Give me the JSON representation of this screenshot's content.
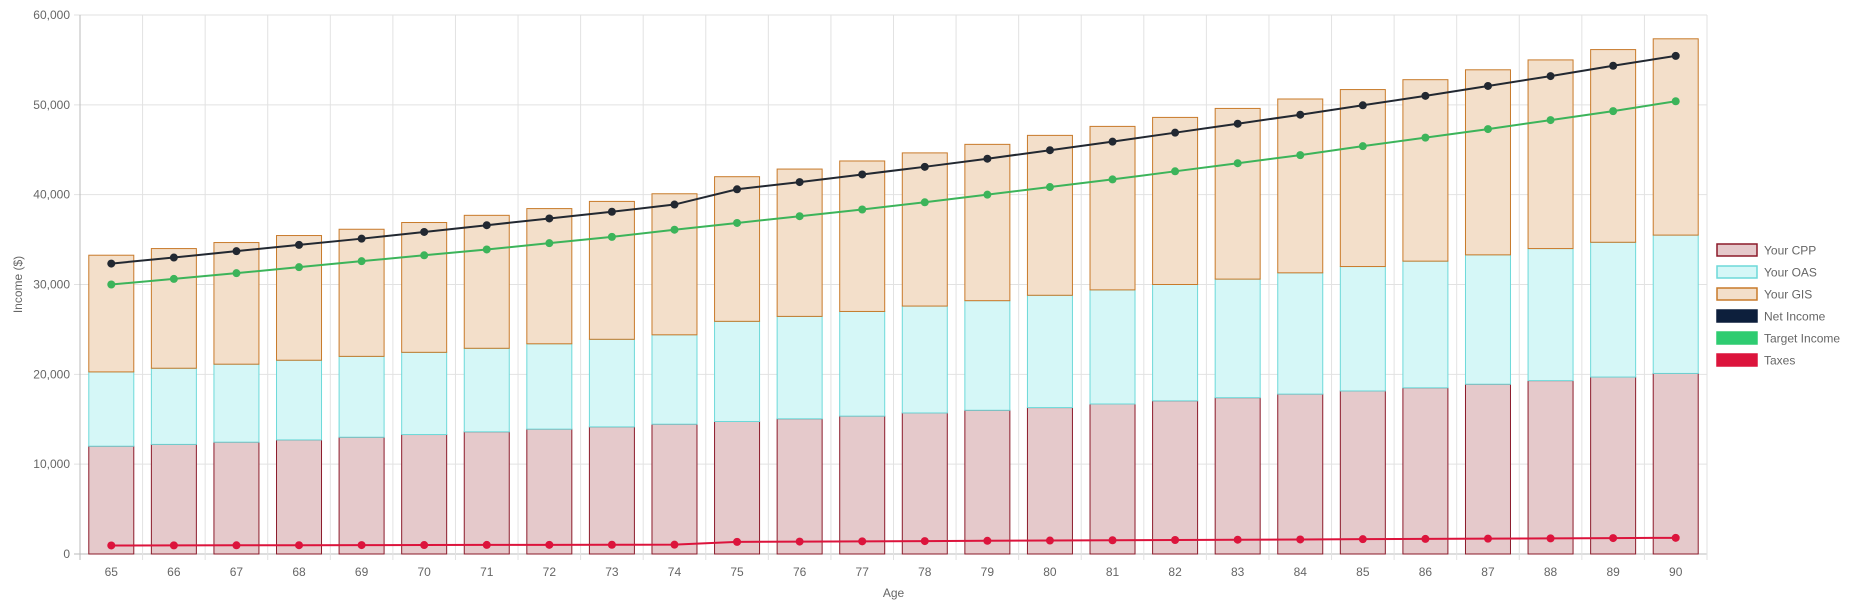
{
  "chart_data": {
    "type": "bar",
    "stacked": true,
    "title": "",
    "xlabel": "Age",
    "ylabel": "Income ($)",
    "ylim": [
      0,
      60000
    ],
    "yticks": [
      "0",
      "10,000",
      "20,000",
      "30,000",
      "40,000",
      "50,000",
      "60,000"
    ],
    "ytick_values": [
      0,
      10000,
      20000,
      30000,
      40000,
      50000,
      60000
    ],
    "grid": true,
    "legend_position": "right",
    "categories": [
      "65",
      "66",
      "67",
      "68",
      "69",
      "70",
      "71",
      "72",
      "73",
      "74",
      "75",
      "76",
      "77",
      "78",
      "79",
      "80",
      "81",
      "82",
      "83",
      "84",
      "85",
      "86",
      "87",
      "88",
      "89",
      "90"
    ],
    "bar_series": [
      {
        "name": "Your CPP",
        "fill": "#e5c9cb",
        "stroke": "#8b1a2a",
        "values": [
          12000,
          12200,
          12450,
          12700,
          13000,
          13300,
          13600,
          13900,
          14150,
          14450,
          14750,
          15050,
          15350,
          15700,
          16000,
          16300,
          16700,
          17050,
          17400,
          17800,
          18150,
          18500,
          18900,
          19300,
          19700,
          20100
        ]
      },
      {
        "name": "Your OAS",
        "fill": "#d5f7f7",
        "stroke": "#6dd9d9",
        "values": [
          8270,
          8480,
          8680,
          8870,
          9000,
          9150,
          9300,
          9500,
          9750,
          9950,
          11150,
          11400,
          11650,
          11900,
          12200,
          12500,
          12700,
          12950,
          13200,
          13500,
          13850,
          14100,
          14400,
          14700,
          15000,
          15400
        ]
      },
      {
        "name": "Your GIS",
        "fill": "#f3dfca",
        "stroke": "#c87a2a",
        "values": [
          12990,
          13320,
          13540,
          13880,
          14150,
          14450,
          14800,
          15050,
          15350,
          15700,
          16100,
          16400,
          16750,
          17050,
          17400,
          17800,
          18200,
          18600,
          19000,
          19350,
          19700,
          20200,
          20600,
          21000,
          21450,
          21850
        ]
      }
    ],
    "line_series": [
      {
        "name": "Net Income",
        "color": "#222831",
        "legend_color": "#0d1f3c",
        "values": [
          32330,
          33000,
          33710,
          34410,
          35100,
          35850,
          36600,
          37350,
          38100,
          38900,
          40600,
          41400,
          42250,
          43100,
          44000,
          44950,
          45900,
          46900,
          47900,
          48900,
          49950,
          51000,
          52100,
          53200,
          54350,
          55450
        ]
      },
      {
        "name": "Target Income",
        "color": "#3cb45a",
        "legend_color": "#2ecc71",
        "values": [
          30000,
          30620,
          31260,
          31930,
          32600,
          33250,
          33900,
          34600,
          35300,
          36100,
          36850,
          37600,
          38350,
          39150,
          40000,
          40850,
          41700,
          42600,
          43500,
          44400,
          45400,
          46350,
          47300,
          48300,
          49300,
          50400
        ]
      },
      {
        "name": "Taxes",
        "color": "#dc143c",
        "legend_color": "#dc143c",
        "values": [
          950,
          960,
          970,
          980,
          990,
          1000,
          1010,
          1020,
          1030,
          1040,
          1350,
          1380,
          1410,
          1440,
          1470,
          1500,
          1530,
          1560,
          1590,
          1620,
          1650,
          1680,
          1710,
          1740,
          1770,
          1800
        ]
      }
    ]
  }
}
